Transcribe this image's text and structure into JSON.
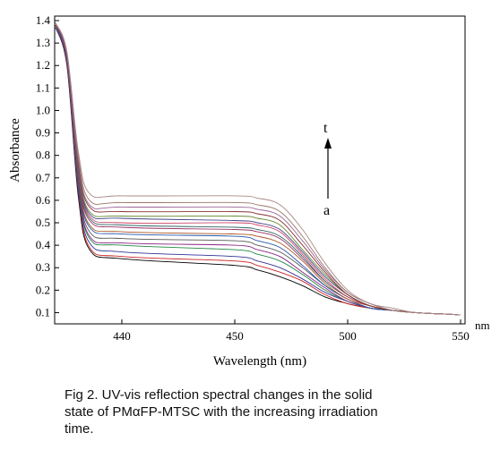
{
  "chart_data": {
    "type": "line",
    "xlabel": "Wavelength (nm)",
    "ylabel": "Absorbance",
    "x_unit": "nm",
    "x_tick_labels": [
      "440",
      "450",
      "500",
      "550"
    ],
    "y_tick_labels": [
      "0.1",
      "0.2",
      "0.3",
      "0.4",
      "0.5",
      "0.6",
      "0.7",
      "0.8",
      "0.9",
      "1.0",
      "1.1",
      "1.2",
      "1.3",
      "1.4"
    ],
    "ylim": [
      0.05,
      1.42
    ],
    "grid": false,
    "x": [
      370,
      390,
      410,
      430,
      440,
      450,
      460,
      470,
      480,
      490,
      500,
      510,
      520,
      530,
      540,
      550
    ],
    "series": [
      {
        "values": [
          1.37,
          1.2,
          0.62,
          0.38,
          0.34,
          0.31,
          0.29,
          0.26,
          0.22,
          0.17,
          0.14,
          0.12,
          0.11,
          0.1,
          0.095,
          0.09
        ]
      },
      {
        "values": [
          1.37,
          1.21,
          0.64,
          0.39,
          0.35,
          0.33,
          0.31,
          0.28,
          0.24,
          0.18,
          0.14,
          0.12,
          0.11,
          0.1,
          0.095,
          0.09
        ]
      },
      {
        "values": [
          1.37,
          1.21,
          0.65,
          0.41,
          0.37,
          0.35,
          0.33,
          0.3,
          0.25,
          0.19,
          0.15,
          0.12,
          0.11,
          0.1,
          0.095,
          0.09
        ]
      },
      {
        "values": [
          1.37,
          1.22,
          0.67,
          0.43,
          0.4,
          0.38,
          0.36,
          0.33,
          0.27,
          0.2,
          0.15,
          0.12,
          0.11,
          0.1,
          0.095,
          0.09
        ]
      },
      {
        "values": [
          1.37,
          1.22,
          0.68,
          0.44,
          0.41,
          0.4,
          0.38,
          0.35,
          0.28,
          0.21,
          0.15,
          0.12,
          0.11,
          0.1,
          0.095,
          0.09
        ]
      },
      {
        "values": [
          1.37,
          1.22,
          0.69,
          0.46,
          0.43,
          0.42,
          0.4,
          0.37,
          0.3,
          0.22,
          0.16,
          0.12,
          0.11,
          0.1,
          0.095,
          0.09
        ]
      },
      {
        "values": [
          1.37,
          1.23,
          0.7,
          0.48,
          0.45,
          0.44,
          0.42,
          0.39,
          0.31,
          0.22,
          0.16,
          0.12,
          0.11,
          0.1,
          0.095,
          0.09
        ]
      },
      {
        "values": [
          1.38,
          1.23,
          0.71,
          0.49,
          0.46,
          0.45,
          0.44,
          0.41,
          0.33,
          0.23,
          0.16,
          0.13,
          0.11,
          0.1,
          0.095,
          0.09
        ]
      },
      {
        "values": [
          1.38,
          1.23,
          0.72,
          0.51,
          0.48,
          0.47,
          0.46,
          0.43,
          0.34,
          0.24,
          0.17,
          0.13,
          0.11,
          0.1,
          0.095,
          0.09
        ]
      },
      {
        "values": [
          1.38,
          1.24,
          0.73,
          0.52,
          0.49,
          0.48,
          0.47,
          0.44,
          0.35,
          0.24,
          0.17,
          0.13,
          0.11,
          0.1,
          0.095,
          0.09
        ]
      },
      {
        "values": [
          1.38,
          1.24,
          0.74,
          0.53,
          0.5,
          0.5,
          0.49,
          0.46,
          0.36,
          0.25,
          0.17,
          0.13,
          0.11,
          0.1,
          0.095,
          0.09
        ]
      },
      {
        "values": [
          1.38,
          1.24,
          0.75,
          0.54,
          0.52,
          0.51,
          0.5,
          0.47,
          0.37,
          0.26,
          0.18,
          0.13,
          0.11,
          0.1,
          0.095,
          0.09
        ]
      },
      {
        "values": [
          1.38,
          1.25,
          0.76,
          0.55,
          0.53,
          0.53,
          0.52,
          0.49,
          0.38,
          0.27,
          0.18,
          0.13,
          0.11,
          0.1,
          0.095,
          0.09
        ]
      },
      {
        "values": [
          1.38,
          1.25,
          0.77,
          0.57,
          0.55,
          0.55,
          0.54,
          0.51,
          0.4,
          0.28,
          0.18,
          0.13,
          0.11,
          0.1,
          0.095,
          0.09
        ]
      },
      {
        "values": [
          1.39,
          1.25,
          0.78,
          0.58,
          0.57,
          0.57,
          0.56,
          0.53,
          0.42,
          0.29,
          0.19,
          0.14,
          0.11,
          0.1,
          0.095,
          0.09
        ]
      },
      {
        "values": [
          1.39,
          1.26,
          0.8,
          0.6,
          0.59,
          0.59,
          0.58,
          0.55,
          0.44,
          0.3,
          0.19,
          0.14,
          0.11,
          0.1,
          0.095,
          0.09
        ]
      },
      {
        "values": [
          1.39,
          1.26,
          0.82,
          0.63,
          0.62,
          0.62,
          0.61,
          0.58,
          0.47,
          0.32,
          0.2,
          0.14,
          0.12,
          0.1,
          0.095,
          0.09
        ]
      }
    ],
    "series_colors": [
      "#000000",
      "#cc2222",
      "#333399",
      "#228844",
      "#882288",
      "#555555",
      "#2255aa",
      "#aa5522",
      "#993366",
      "#336666",
      "#cc4466",
      "#444488",
      "#668833",
      "#883333",
      "#996699",
      "#997766",
      "#aa8888"
    ],
    "annotations": {
      "top": "t",
      "bottom": "a"
    }
  },
  "caption": {
    "line1": "Fig 2. UV-vis reflection spectral changes in the solid",
    "line2": "state of PMαFP-MTSC with the increasing irradiation",
    "line3": "time."
  }
}
